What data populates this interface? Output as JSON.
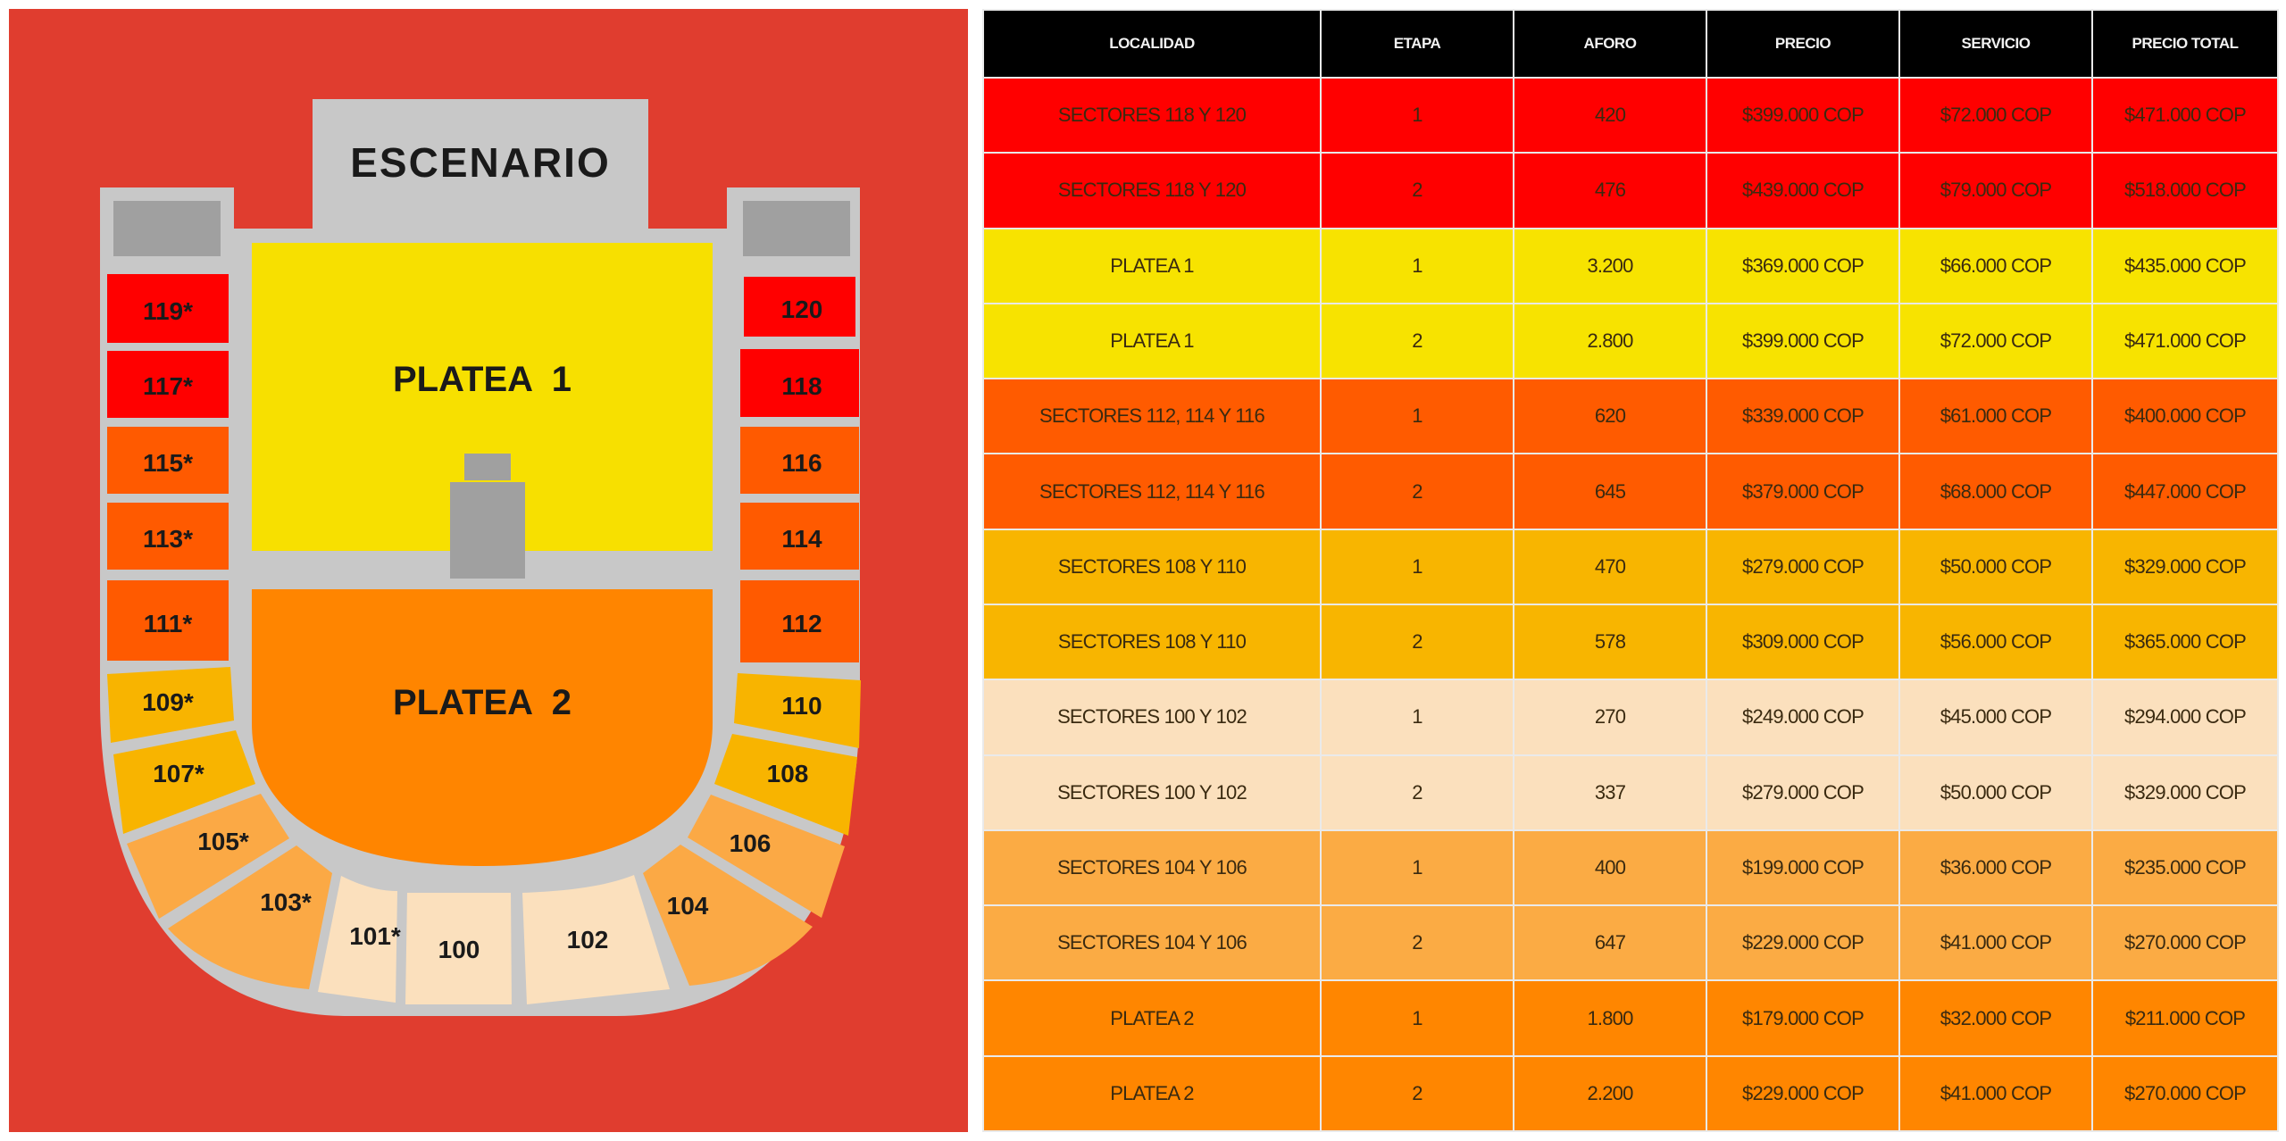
{
  "seat_map": {
    "stage_label": "ESCENARIO",
    "floor": [
      {
        "id": "platea-1",
        "label": "PLATEA  1",
        "color": "#f7e000"
      },
      {
        "id": "platea-2",
        "label": "PLATEA  2",
        "color": "#ff8500"
      }
    ],
    "left_sections": [
      {
        "label": "119*",
        "color": "#ff0000"
      },
      {
        "label": "117*",
        "color": "#ff0000"
      },
      {
        "label": "115*",
        "color": "#ff5a00"
      },
      {
        "label": "113*",
        "color": "#ff5a00"
      },
      {
        "label": "111*",
        "color": "#ff5a00"
      },
      {
        "label": "109*",
        "color": "#f8b400"
      },
      {
        "label": "107*",
        "color": "#f8b400"
      },
      {
        "label": "105*",
        "color": "#fba945"
      },
      {
        "label": "103*",
        "color": "#fba945"
      },
      {
        "label": "101*",
        "color": "#fbe0bd"
      }
    ],
    "center_section": {
      "label": "100",
      "color": "#fbe0bd"
    },
    "right_sections": [
      {
        "label": "120",
        "color": "#ff0000"
      },
      {
        "label": "118",
        "color": "#ff0000"
      },
      {
        "label": "116",
        "color": "#ff5a00"
      },
      {
        "label": "114",
        "color": "#ff5a00"
      },
      {
        "label": "112",
        "color": "#ff5a00"
      },
      {
        "label": "110",
        "color": "#f8b400"
      },
      {
        "label": "108",
        "color": "#f8b400"
      },
      {
        "label": "106",
        "color": "#fba945"
      },
      {
        "label": "104",
        "color": "#fba945"
      },
      {
        "label": "102",
        "color": "#fbe0bd"
      }
    ],
    "colors": {
      "background": "#e03d2f",
      "walkway": "#c8c8c8",
      "structure": "#a0a0a0"
    }
  },
  "price_table": {
    "headers": [
      "LOCALIDAD",
      "ETAPA",
      "AFORO",
      "PRECIO",
      "SERVICIO",
      "PRECIO TOTAL"
    ],
    "rows": [
      {
        "localidad": "SECTORES 118 Y 120",
        "etapa": "1",
        "aforo": "420",
        "precio": "$399.000 COP",
        "servicio": "$72.000 COP",
        "total": "$471.000 COP",
        "color": "#ff0000"
      },
      {
        "localidad": "SECTORES 118 Y 120",
        "etapa": "2",
        "aforo": "476",
        "precio": "$439.000 COP",
        "servicio": "$79.000 COP",
        "total": "$518.000 COP",
        "color": "#ff0000"
      },
      {
        "localidad": "PLATEA 1",
        "etapa": "1",
        "aforo": "3.200",
        "precio": "$369.000 COP",
        "servicio": "$66.000 COP",
        "total": "$435.000 COP",
        "color": "#f7e300"
      },
      {
        "localidad": "PLATEA 1",
        "etapa": "2",
        "aforo": "2.800",
        "precio": "$399.000 COP",
        "servicio": "$72.000 COP",
        "total": "$471.000 COP",
        "color": "#f7e300"
      },
      {
        "localidad": "SECTORES 112, 114 Y 116",
        "etapa": "1",
        "aforo": "620",
        "precio": "$339.000 COP",
        "servicio": "$61.000 COP",
        "total": "$400.000 COP",
        "color": "#ff5b00"
      },
      {
        "localidad": "SECTORES 112, 114 Y 116",
        "etapa": "2",
        "aforo": "645",
        "precio": "$379.000 COP",
        "servicio": "$68.000 COP",
        "total": "$447.000 COP",
        "color": "#ff5b00"
      },
      {
        "localidad": "SECTORES 108 Y 110",
        "etapa": "1",
        "aforo": "470",
        "precio": "$279.000 COP",
        "servicio": "$50.000 COP",
        "total": "$329.000 COP",
        "color": "#f8b500"
      },
      {
        "localidad": "SECTORES 108 Y 110",
        "etapa": "2",
        "aforo": "578",
        "precio": "$309.000 COP",
        "servicio": "$56.000 COP",
        "total": "$365.000 COP",
        "color": "#f8b500"
      },
      {
        "localidad": "SECTORES 100 Y 102",
        "etapa": "1",
        "aforo": "270",
        "precio": "$249.000 COP",
        "servicio": "$45.000 COP",
        "total": "$294.000 COP",
        "color": "#fbe0bd"
      },
      {
        "localidad": "SECTORES 100 Y 102",
        "etapa": "2",
        "aforo": "337",
        "precio": "$279.000 COP",
        "servicio": "$50.000 COP",
        "total": "$329.000 COP",
        "color": "#fbe0bd"
      },
      {
        "localidad": "SECTORES 104 Y 106",
        "etapa": "1",
        "aforo": "400",
        "precio": "$199.000 COP",
        "servicio": "$36.000 COP",
        "total": "$235.000 COP",
        "color": "#fbab44"
      },
      {
        "localidad": "SECTORES 104 Y 106",
        "etapa": "2",
        "aforo": "647",
        "precio": "$229.000 COP",
        "servicio": "$41.000 COP",
        "total": "$270.000 COP",
        "color": "#fbab44"
      },
      {
        "localidad": "PLATEA 2",
        "etapa": "1",
        "aforo": "1.800",
        "precio": "$179.000 COP",
        "servicio": "$32.000 COP",
        "total": "$211.000 COP",
        "color": "#ff8600"
      },
      {
        "localidad": "PLATEA 2",
        "etapa": "2",
        "aforo": "2.200",
        "precio": "$229.000 COP",
        "servicio": "$41.000 COP",
        "total": "$270.000 COP",
        "color": "#ff8600"
      }
    ]
  }
}
